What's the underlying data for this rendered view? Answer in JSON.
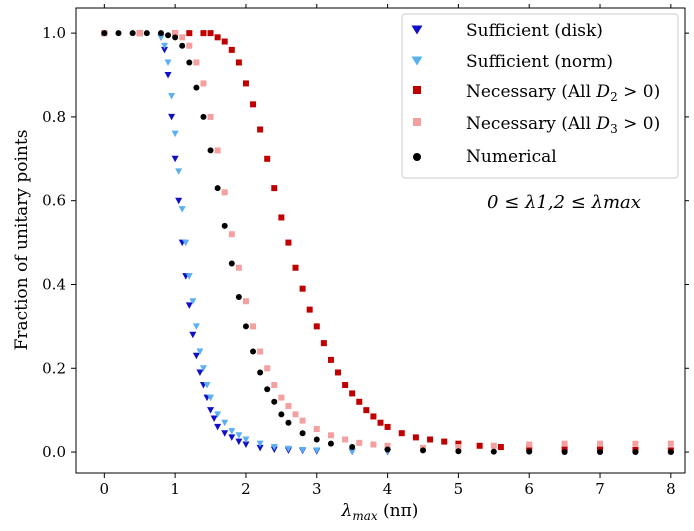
{
  "chart_data": {
    "type": "scatter",
    "title": "",
    "xlabel": "λmax (nπ)",
    "xlabel_parts": {
      "symbol": "λ",
      "subscript": "max",
      "unit": "(nπ)"
    },
    "ylabel": "Fraction of unitary points",
    "xlim": [
      -0.4,
      8.2
    ],
    "ylim": [
      -0.05,
      1.06
    ],
    "xticks": [
      "0",
      "1",
      "2",
      "3",
      "4",
      "5",
      "6",
      "7",
      "8"
    ],
    "yticks": [
      "0.0",
      "0.2",
      "0.4",
      "0.6",
      "0.8",
      "1.0"
    ],
    "grid": false,
    "legend_placement": "top-right",
    "annotation": "0 ≤ λ1,2 ≤ λmax",
    "series": [
      {
        "name": "Sufficient (disk)",
        "marker": "triangle-down",
        "color": "#1010c8",
        "x": [
          0.8,
          0.85,
          0.9,
          0.95,
          1.0,
          1.05,
          1.1,
          1.15,
          1.2,
          1.25,
          1.3,
          1.35,
          1.4,
          1.45,
          1.5,
          1.55,
          1.6,
          1.7,
          1.8,
          1.9,
          2.0,
          2.2,
          2.4,
          2.6,
          2.8,
          3.0,
          3.5,
          4.0
        ],
        "y": [
          0.99,
          0.96,
          0.9,
          0.8,
          0.7,
          0.6,
          0.5,
          0.42,
          0.35,
          0.28,
          0.23,
          0.19,
          0.16,
          0.13,
          0.1,
          0.08,
          0.06,
          0.045,
          0.035,
          0.025,
          0.018,
          0.01,
          0.006,
          0.004,
          0.003,
          0.002,
          0.001,
          0.0
        ]
      },
      {
        "name": "Sufficient (norm)",
        "marker": "triangle-down",
        "color": "#5ab0f0",
        "x": [
          0.8,
          0.85,
          0.9,
          0.95,
          1.0,
          1.05,
          1.1,
          1.15,
          1.2,
          1.25,
          1.3,
          1.35,
          1.4,
          1.45,
          1.5,
          1.6,
          1.7,
          1.8,
          1.9,
          2.0,
          2.2,
          2.4,
          2.6,
          2.8,
          3.0,
          3.5,
          4.0
        ],
        "y": [
          0.99,
          0.97,
          0.93,
          0.85,
          0.76,
          0.67,
          0.58,
          0.5,
          0.42,
          0.36,
          0.3,
          0.24,
          0.2,
          0.16,
          0.13,
          0.09,
          0.07,
          0.05,
          0.04,
          0.03,
          0.02,
          0.012,
          0.008,
          0.005,
          0.004,
          0.002,
          0.001
        ]
      },
      {
        "name": "Necessary (All D2 > 0)",
        "legend_parts": {
          "prefix": "Necessary (All ",
          "symbol": "D",
          "subscript": "2",
          "suffix": " > 0)"
        },
        "marker": "square",
        "color": "#c00000",
        "x": [
          0.0,
          0.5,
          1.0,
          1.2,
          1.4,
          1.5,
          1.6,
          1.7,
          1.8,
          1.9,
          2.0,
          2.1,
          2.2,
          2.3,
          2.4,
          2.5,
          2.6,
          2.7,
          2.8,
          2.9,
          3.0,
          3.1,
          3.2,
          3.3,
          3.4,
          3.5,
          3.6,
          3.7,
          3.8,
          3.9,
          4.0,
          4.2,
          4.4,
          4.6,
          4.8,
          5.0,
          5.3,
          5.6,
          6.0,
          6.5,
          7.0,
          7.5,
          8.0
        ],
        "y": [
          1.0,
          1.0,
          1.0,
          1.0,
          1.0,
          1.0,
          0.99,
          0.98,
          0.96,
          0.93,
          0.88,
          0.83,
          0.77,
          0.7,
          0.63,
          0.56,
          0.5,
          0.44,
          0.39,
          0.34,
          0.3,
          0.26,
          0.22,
          0.19,
          0.16,
          0.14,
          0.12,
          0.1,
          0.085,
          0.07,
          0.06,
          0.045,
          0.035,
          0.03,
          0.025,
          0.02,
          0.015,
          0.012,
          0.01,
          0.008,
          0.006,
          0.005,
          0.004
        ]
      },
      {
        "name": "Necessary (All D3 > 0)",
        "legend_parts": {
          "prefix": "Necessary (All ",
          "symbol": "D",
          "subscript": "3",
          "suffix": " > 0)"
        },
        "marker": "square",
        "color": "#f4a0a0",
        "x": [
          0.0,
          0.5,
          1.0,
          1.1,
          1.2,
          1.3,
          1.4,
          1.5,
          1.6,
          1.7,
          1.8,
          1.9,
          2.0,
          2.1,
          2.2,
          2.3,
          2.4,
          2.5,
          2.6,
          2.7,
          2.8,
          3.0,
          3.2,
          3.4,
          3.6,
          3.8,
          4.0,
          4.5,
          5.0,
          5.5,
          6.0,
          6.5,
          7.0,
          7.5,
          8.0
        ],
        "y": [
          1.0,
          1.0,
          1.0,
          0.99,
          0.97,
          0.93,
          0.88,
          0.8,
          0.72,
          0.62,
          0.52,
          0.44,
          0.36,
          0.3,
          0.24,
          0.2,
          0.16,
          0.13,
          0.11,
          0.09,
          0.075,
          0.055,
          0.04,
          0.03,
          0.022,
          0.018,
          0.015,
          0.01,
          0.012,
          0.015,
          0.018,
          0.02,
          0.02,
          0.02,
          0.02
        ]
      },
      {
        "name": "Numerical",
        "marker": "circle",
        "color": "#000000",
        "x": [
          0.0,
          0.2,
          0.4,
          0.6,
          0.8,
          0.9,
          1.0,
          1.1,
          1.2,
          1.3,
          1.4,
          1.5,
          1.6,
          1.7,
          1.8,
          1.9,
          2.0,
          2.1,
          2.2,
          2.3,
          2.4,
          2.5,
          2.6,
          2.8,
          3.0,
          3.2,
          3.5,
          4.0,
          4.5,
          5.0,
          5.5,
          6.0,
          6.5,
          7.0,
          7.5,
          8.0
        ],
        "y": [
          1.0,
          1.0,
          1.0,
          1.0,
          1.0,
          0.995,
          0.99,
          0.97,
          0.93,
          0.87,
          0.8,
          0.72,
          0.63,
          0.54,
          0.45,
          0.37,
          0.3,
          0.24,
          0.19,
          0.15,
          0.12,
          0.09,
          0.07,
          0.045,
          0.03,
          0.02,
          0.012,
          0.006,
          0.004,
          0.002,
          0.001,
          0.001,
          0.0,
          0.0,
          0.0,
          0.0
        ]
      }
    ]
  }
}
